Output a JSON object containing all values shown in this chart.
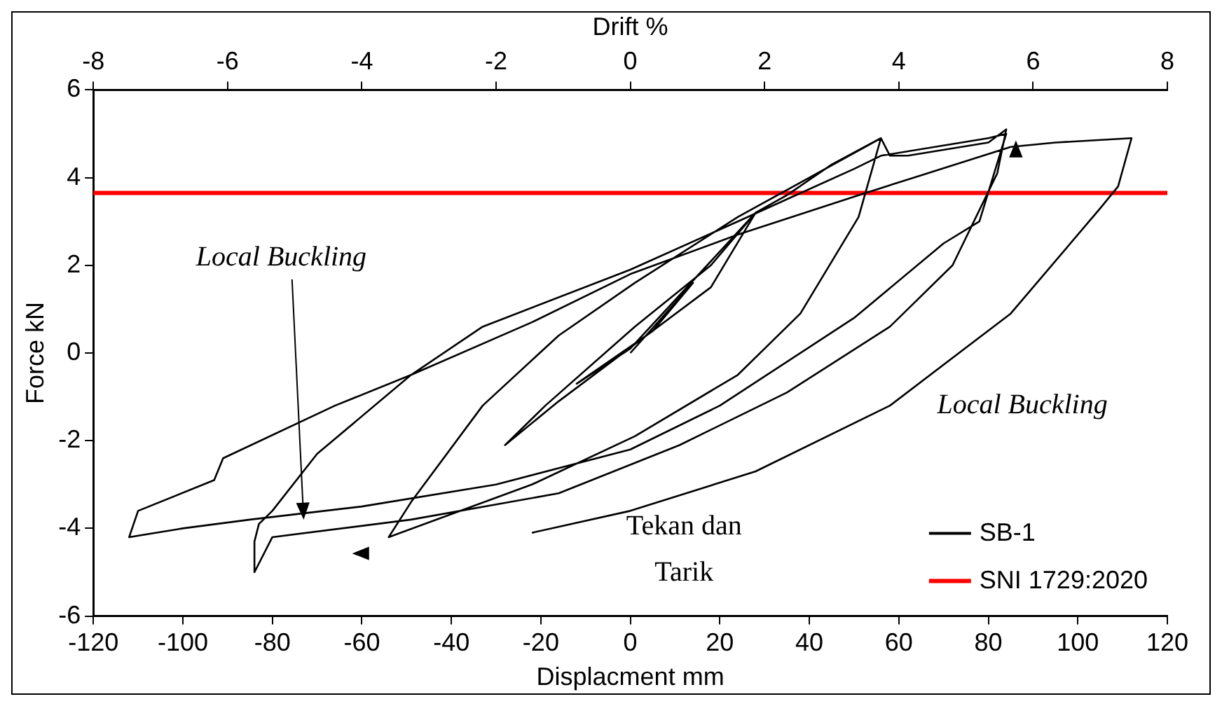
{
  "chart_data": {
    "type": "line",
    "xlabel": "Displacment mm",
    "ylabel": "Force kN",
    "x2label": "Drift %",
    "xlim": [
      -120,
      120
    ],
    "xticks": [
      -120,
      -100,
      -80,
      -60,
      -40,
      -20,
      0,
      20,
      40,
      60,
      80,
      100,
      120
    ],
    "x2lim": [
      -8,
      8
    ],
    "x2ticks": [
      -8,
      -6,
      -4,
      -2,
      0,
      2,
      4,
      6,
      8
    ],
    "ylim": [
      -6,
      6
    ],
    "yticks": [
      -6,
      -4,
      -2,
      0,
      2,
      4,
      6
    ],
    "grid": false,
    "legend": "bottom right",
    "marker": "none",
    "line_style": "solid",
    "series": [
      {
        "name": "SB-1",
        "color": "#000000",
        "x": [
          0,
          14,
          5,
          -12,
          0,
          28,
          18,
          1,
          -16,
          -28,
          -19,
          1,
          18,
          28,
          35,
          45,
          56,
          51,
          38,
          24,
          1,
          -22,
          -54,
          -49,
          -33,
          -16,
          1,
          24,
          40,
          56,
          58,
          62,
          80,
          84,
          82,
          72,
          58,
          35,
          11,
          -16,
          -49,
          -80,
          -84,
          -84,
          -83,
          -80,
          -70,
          -49,
          -33,
          0,
          24,
          50,
          56,
          80,
          84,
          78,
          70,
          50,
          20,
          0,
          -30,
          -60,
          -85,
          -100,
          -112,
          -110,
          -93,
          -91,
          -66,
          -49,
          -22,
          0,
          24,
          51,
          85,
          95,
          112,
          109,
          105,
          85,
          58,
          28,
          0,
          -22
        ],
        "values": [
          0,
          1.6,
          0.5,
          -0.7,
          0.1,
          3.2,
          1.5,
          0.2,
          -1.1,
          -2.1,
          -1.2,
          0.6,
          2.0,
          3.2,
          3.6,
          4.3,
          4.9,
          3.1,
          0.9,
          -0.5,
          -1.9,
          -3.0,
          -4.2,
          -3.4,
          -1.2,
          0.4,
          1.6,
          3.1,
          4.0,
          4.9,
          4.5,
          4.5,
          4.8,
          5.1,
          4.1,
          2.0,
          0.6,
          -0.9,
          -2.1,
          -3.2,
          -3.8,
          -4.2,
          -5.0,
          -4.3,
          -3.9,
          -3.6,
          -2.3,
          -0.5,
          0.6,
          1.9,
          3.0,
          4.2,
          4.5,
          4.9,
          5.0,
          3.0,
          2.5,
          0.8,
          -1.2,
          -2.2,
          -3.0,
          -3.5,
          -3.8,
          -4.0,
          -4.2,
          -3.6,
          -2.9,
          -2.4,
          -1.2,
          -0.5,
          0.7,
          1.8,
          2.7,
          3.6,
          4.7,
          4.8,
          4.9,
          3.8,
          3.3,
          0.9,
          -1.2,
          -2.7,
          -3.6,
          -4.1
        ]
      },
      {
        "name": "SNI 1729:2020",
        "color": "#ff0000",
        "x": [
          -120,
          120
        ],
        "values": [
          3.65,
          3.65
        ]
      }
    ],
    "annotations": [
      {
        "text": "Local Buckling",
        "x": -73,
        "y": -3.8
      },
      "Local Buckling",
      "Tekan dan Tarik"
    ]
  }
}
